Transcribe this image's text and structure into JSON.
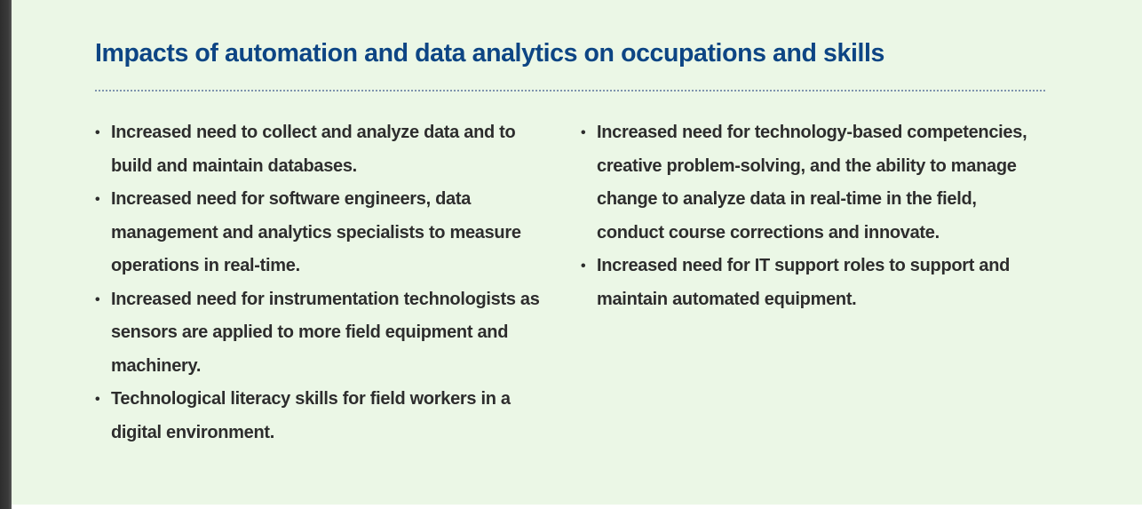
{
  "title": "Impacts of automation and data analytics on occupations and skills",
  "left_items": [
    "Increased need to collect and analyze data and to build and maintain databases.",
    "Increased need for software engineers, data management and analytics specialists to measure operations in real-time.",
    "Increased need for instrumentation technologists as sensors are applied to more field equipment and machinery.",
    "Technological literacy skills for field workers in a digital environment."
  ],
  "right_items": [
    "Increased need for technology-based competencies, creative problem-solving, and the ability to manage change to analyze data in real-time in the field, conduct course corrections and innovate.",
    "Increased need for IT support roles to support and maintain automated equipment."
  ],
  "colors": {
    "background": "#ebf7e6",
    "title": "#0d4584",
    "text": "#2d2d2d",
    "divider": "#7e94ae"
  }
}
